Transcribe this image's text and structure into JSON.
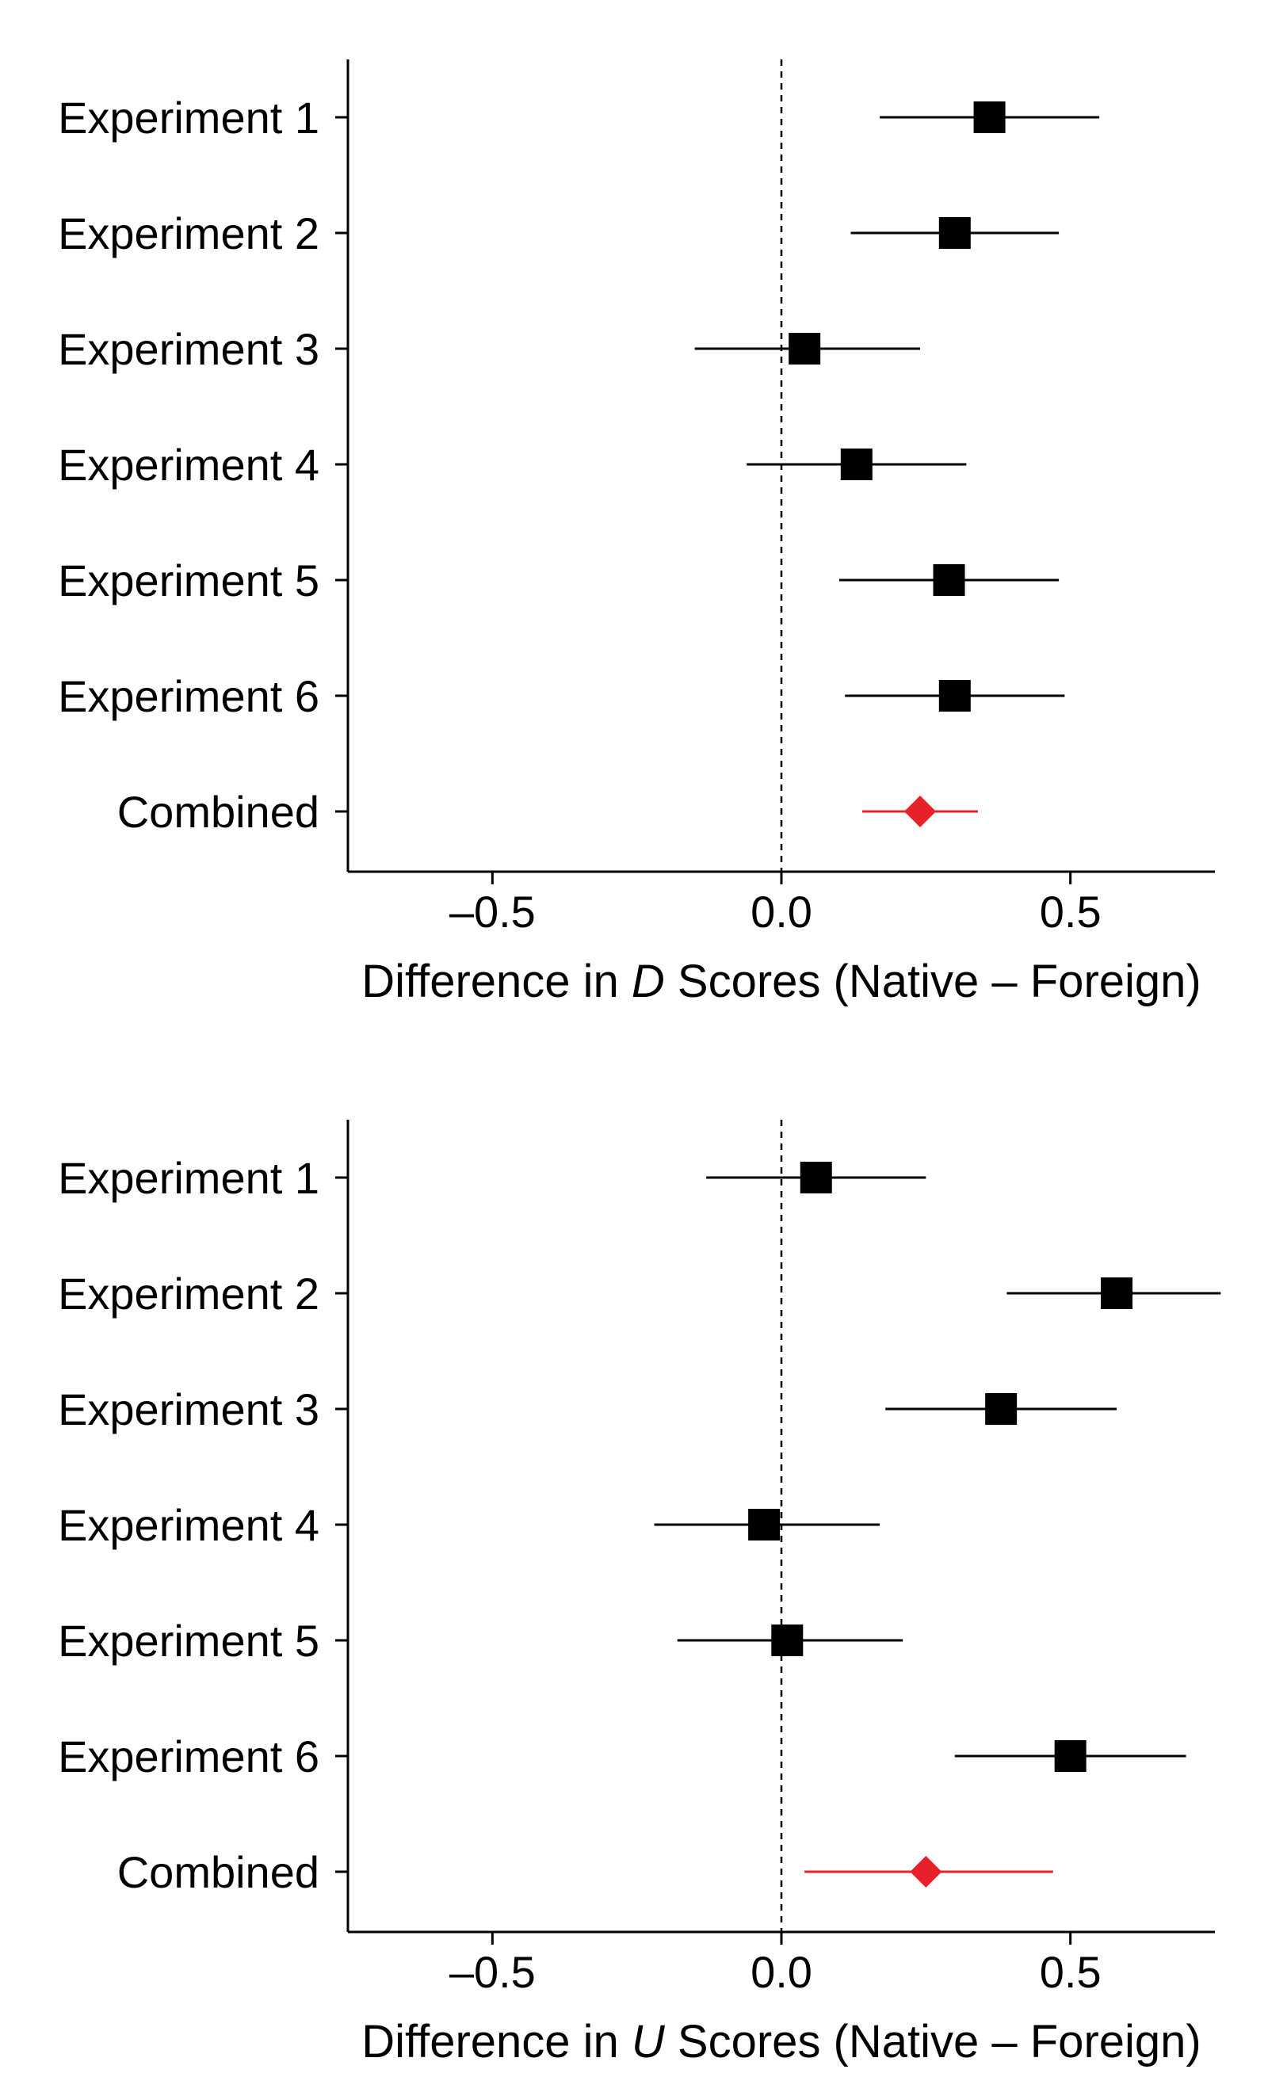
{
  "chart_data": [
    {
      "type": "forest",
      "xlabel": {
        "prefix": "Difference in ",
        "italic": "D",
        "suffix": " Scores (Native – Foreign)"
      },
      "xlim": [
        -0.75,
        0.75
      ],
      "xticks": [
        -0.5,
        0.0,
        0.5
      ],
      "xtick_labels": [
        "–0.5",
        "0.0",
        "0.5"
      ],
      "reference_line": 0,
      "categories": [
        "Experiment 1",
        "Experiment 2",
        "Experiment 3",
        "Experiment 4",
        "Experiment 5",
        "Experiment 6",
        "Combined"
      ],
      "estimates": [
        0.36,
        0.3,
        0.04,
        0.13,
        0.29,
        0.3,
        0.24
      ],
      "ci_lower": [
        0.17,
        0.12,
        -0.15,
        -0.06,
        0.1,
        0.11,
        0.14
      ],
      "ci_upper": [
        0.55,
        0.48,
        0.24,
        0.32,
        0.48,
        0.49,
        0.34
      ],
      "colors": {
        "experiment": "#000000",
        "combined": "#e8202a"
      }
    },
    {
      "type": "forest",
      "xlabel": {
        "prefix": "Difference in ",
        "italic": "U",
        "suffix": " Scores (Native – Foreign)"
      },
      "xlim": [
        -0.75,
        0.75
      ],
      "xticks": [
        -0.5,
        0.0,
        0.5
      ],
      "xtick_labels": [
        "–0.5",
        "0.0",
        "0.5"
      ],
      "reference_line": 0,
      "categories": [
        "Experiment 1",
        "Experiment 2",
        "Experiment 3",
        "Experiment 4",
        "Experiment 5",
        "Experiment 6",
        "Combined"
      ],
      "estimates": [
        0.06,
        0.58,
        0.38,
        -0.03,
        0.01,
        0.5,
        0.25
      ],
      "ci_lower": [
        -0.13,
        0.39,
        0.18,
        -0.22,
        -0.18,
        0.3,
        0.04
      ],
      "ci_upper": [
        0.25,
        0.76,
        0.58,
        0.17,
        0.21,
        0.7,
        0.47
      ],
      "colors": {
        "experiment": "#000000",
        "combined": "#e8202a"
      }
    }
  ]
}
